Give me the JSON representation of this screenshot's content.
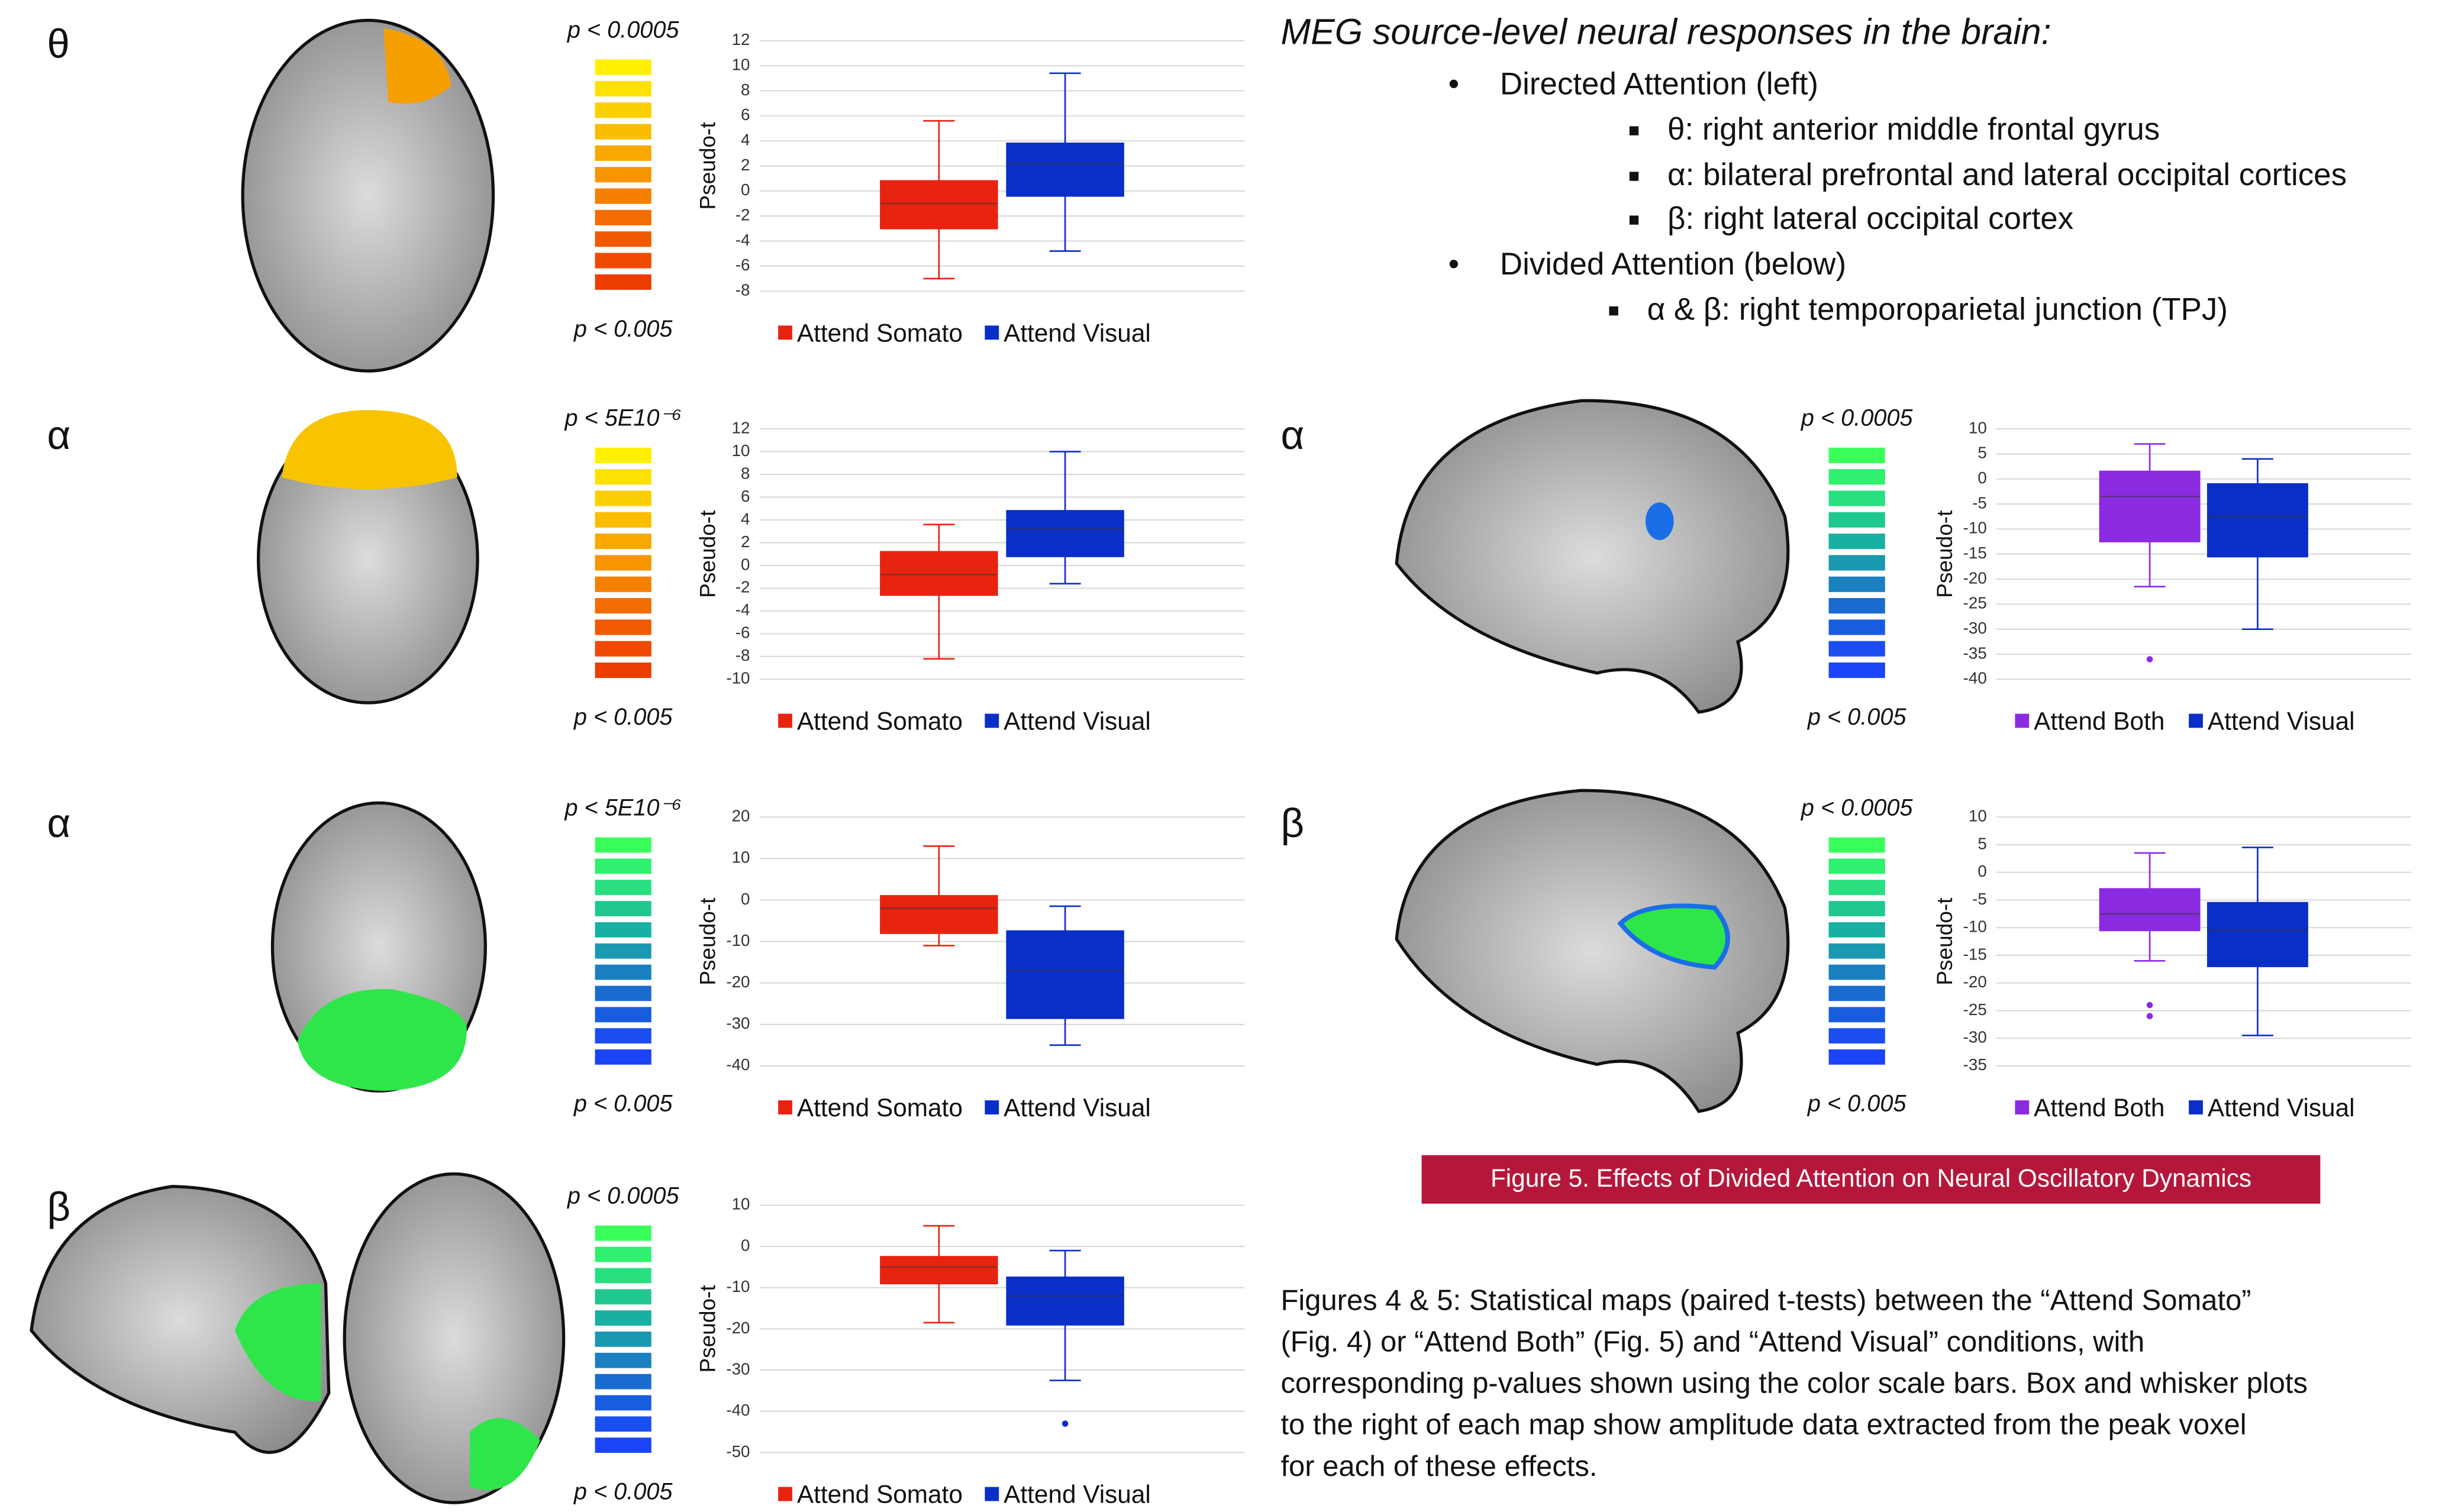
{
  "chart_data": [
    {
      "type": "box",
      "ylabel": "Pseudo-t",
      "ylim": [
        -8,
        12
      ],
      "yticks": [
        -8,
        -6,
        -4,
        -2,
        0,
        2,
        4,
        6,
        8,
        10,
        12
      ],
      "series": [
        {
          "name": "Attend Somato",
          "color": "#e8230f",
          "min": -7,
          "q1": -3,
          "median": -1,
          "q3": 0.8,
          "max": 5.6
        },
        {
          "name": "Attend Visual",
          "color": "#0a2ec8",
          "min": -4.8,
          "q1": -0.4,
          "median": 2.2,
          "q3": 3.8,
          "max": 9.4
        }
      ]
    },
    {
      "type": "box",
      "ylabel": "Pseudo-t",
      "ylim": [
        -10,
        12
      ],
      "yticks": [
        -10,
        -8,
        -6,
        -4,
        -2,
        0,
        2,
        4,
        6,
        8,
        10,
        12
      ],
      "series": [
        {
          "name": "Attend Somato",
          "color": "#e8230f",
          "min": -8.2,
          "q1": -2.6,
          "median": -0.8,
          "q3": 1.2,
          "max": 3.6
        },
        {
          "name": "Attend Visual",
          "color": "#0a2ec8",
          "min": -1.6,
          "q1": 0.8,
          "median": 3.2,
          "q3": 4.8,
          "max": 10
        }
      ]
    },
    {
      "type": "box",
      "ylabel": "Pseudo-t",
      "ylim": [
        -40,
        20
      ],
      "yticks": [
        -40,
        -30,
        -20,
        -10,
        0,
        10,
        20
      ],
      "series": [
        {
          "name": "Attend Somato",
          "color": "#e8230f",
          "min": -11,
          "q1": -8,
          "median": -2,
          "q3": 1,
          "max": 13
        },
        {
          "name": "Attend Visual",
          "color": "#0a2ec8",
          "min": -35,
          "q1": -28.5,
          "median": -17,
          "q3": -7.5,
          "max": -1.5
        }
      ]
    },
    {
      "type": "box",
      "ylabel": "Pseudo-t",
      "ylim": [
        -50,
        10
      ],
      "yticks": [
        -50,
        -40,
        -30,
        -20,
        -10,
        0,
        10
      ],
      "series": [
        {
          "name": "Attend Somato",
          "color": "#e8230f",
          "min": -18.5,
          "q1": -9,
          "median": -5,
          "q3": -2.5,
          "max": 5
        },
        {
          "name": "Attend Visual",
          "color": "#0a2ec8",
          "min": -32.5,
          "q1": -19,
          "median": -12,
          "q3": -7.5,
          "max": -1,
          "outliers": [
            -43
          ]
        }
      ]
    },
    {
      "type": "box",
      "ylabel": "Pseudo-t",
      "ylim": [
        -40,
        10
      ],
      "yticks": [
        -40,
        -35,
        -30,
        -25,
        -20,
        -15,
        -10,
        -5,
        0,
        5,
        10
      ],
      "series": [
        {
          "name": "Attend Both",
          "color": "#8a2be2",
          "min": -21.5,
          "q1": -12.5,
          "median": -3.5,
          "q3": 1.5,
          "max": 7,
          "outliers": [
            -36
          ]
        },
        {
          "name": "Attend Visual",
          "color": "#0a2ec8",
          "min": -30,
          "q1": -15.5,
          "median": -7.5,
          "q3": -1,
          "max": 4
        }
      ]
    },
    {
      "type": "box",
      "ylabel": "Pseudo-t",
      "ylim": [
        -35,
        10
      ],
      "yticks": [
        -35,
        -30,
        -25,
        -20,
        -15,
        -10,
        -5,
        0,
        5,
        10
      ],
      "series": [
        {
          "name": "Attend Both",
          "color": "#8a2be2",
          "min": -16,
          "q1": -10.5,
          "median": -7.5,
          "q3": -3,
          "max": 3.5,
          "outliers": [
            -24,
            -26
          ]
        },
        {
          "name": "Attend Visual",
          "color": "#0a2ec8",
          "min": -29.5,
          "q1": -17,
          "median": -10.5,
          "q3": -5.5,
          "max": 4.5
        }
      ]
    }
  ],
  "panels": [
    {
      "band": "θ",
      "p_top": "p < 0.0005",
      "p_bottom": "p < 0.005"
    },
    {
      "band": "α",
      "p_top": "p < 5E10⁻⁶",
      "p_bottom": "p < 0.005"
    },
    {
      "band": "α",
      "p_top": "p < 5E10⁻⁶",
      "p_bottom": "p < 0.005"
    },
    {
      "band": "β",
      "p_top": "p < 0.0005",
      "p_bottom": "p < 0.005"
    },
    {
      "band": "α",
      "p_top": "p < 0.0005",
      "p_bottom": "p < 0.005"
    },
    {
      "band": "β",
      "p_top": "p < 0.0005",
      "p_bottom": "p < 0.005"
    }
  ],
  "header": {
    "title": "MEG source-level neural responses in the brain:",
    "bullets": [
      {
        "text": "Directed Attention (left)",
        "items": [
          "θ: right anterior middle frontal gyrus",
          "α: bilateral prefrontal and lateral occipital cortices",
          "β: right lateral occipital cortex"
        ]
      },
      {
        "text": "Divided Attention (below)",
        "items": [
          "α & β: right temporoparietal junction (TPJ)"
        ]
      }
    ]
  },
  "figure_caption": "Figure 5. Effects of Divided Attention on Neural Oscillatory Dynamics",
  "description": [
    "Figures 4 & 5: Statistical maps (paired t-tests) between the “Attend Somato”",
    "(Fig. 4) or “Attend Both” (Fig. 5) and “Attend Visual” conditions, with",
    "corresponding p-values shown using the color scale bars. Box and whisker plots",
    "to the right of each map show amplitude data extracted from the peak voxel",
    "for each of these effects."
  ]
}
